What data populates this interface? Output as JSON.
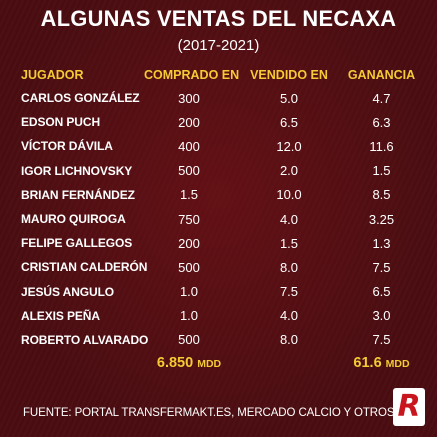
{
  "header": {
    "title": "ALGUNAS VENTAS DEL NECAXA",
    "subtitle": "(2017-2021)"
  },
  "table": {
    "columns": [
      "JUGADOR",
      "COMPRADO EN",
      "VENDIDO EN",
      "GANANCIA"
    ],
    "rows": [
      {
        "player": "CARLOS GONZÁLEZ",
        "bought": "300",
        "sold": "5.0",
        "profit": "4.7"
      },
      {
        "player": "EDSON PUCH",
        "bought": "200",
        "sold": "6.5",
        "profit": "6.3"
      },
      {
        "player": "VÍCTOR DÁVILA",
        "bought": "400",
        "sold": "12.0",
        "profit": "11.6"
      },
      {
        "player": "IGOR LICHNOVSKY",
        "bought": "500",
        "sold": "2.0",
        "profit": "1.5"
      },
      {
        "player": "BRIAN FERNÁNDEZ",
        "bought": "1.5",
        "sold": "10.0",
        "profit": "8.5"
      },
      {
        "player": "MAURO QUIROGA",
        "bought": "750",
        "sold": "4.0",
        "profit": "3.25"
      },
      {
        "player": "FELIPE GALLEGOS",
        "bought": "200",
        "sold": "1.5",
        "profit": "1.3"
      },
      {
        "player": "CRISTIAN CALDERÓN",
        "bought": "500",
        "sold": "8.0",
        "profit": "7.5"
      },
      {
        "player": "JESÚS ANGULO",
        "bought": "1.0",
        "sold": "7.5",
        "profit": "6.5"
      },
      {
        "player": "ALEXIS PEÑA",
        "bought": "1.0",
        "sold": "4.0",
        "profit": "3.0"
      },
      {
        "player": "ROBERTO ALVARADO",
        "bought": "500",
        "sold": "8.0",
        "profit": "7.5"
      }
    ],
    "totals": {
      "bought": "6.850",
      "bought_unit": "MDD",
      "profit": "61.6",
      "profit_unit": "MDD"
    }
  },
  "footer": {
    "source": "FUENTE: PORTAL TRANSFERMAKT.ES, MERCADO CALCIO Y OTROS.",
    "logo_letter": "R"
  },
  "colors": {
    "background": "#4a0d11",
    "header_accent": "#f4cb34",
    "text": "#ffffff",
    "logo_red": "#c8161e"
  }
}
